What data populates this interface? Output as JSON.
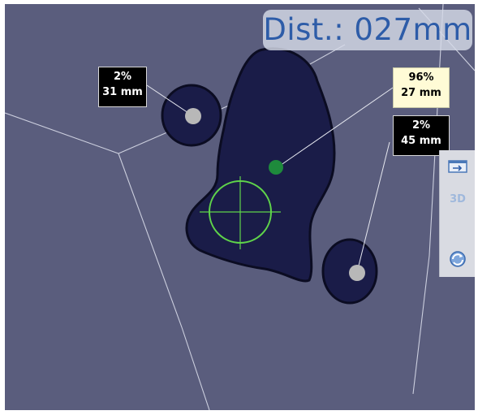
{
  "viewer": {
    "distance_readout": "Dist.: 027mm",
    "background_color": "#5a5d7d",
    "surface_color": "#1a1c48"
  },
  "measurements": [
    {
      "percent": "2%",
      "distance": "31 mm",
      "style": "dark"
    },
    {
      "percent": "96%",
      "distance": "27 mm",
      "style": "highlighted"
    },
    {
      "percent": "2%",
      "distance": "45 mm",
      "style": "dark"
    }
  ],
  "toolbar": {
    "window_icon": "window-toggle-icon",
    "view_3d_label": "3D",
    "rotate_icon": "rotate-view-icon"
  },
  "colors": {
    "readout_text": "#2d5ca8",
    "crosshair": "#5fd44a",
    "marker_green": "#1e8a3c",
    "marker_grey": "#b8b8b8"
  }
}
